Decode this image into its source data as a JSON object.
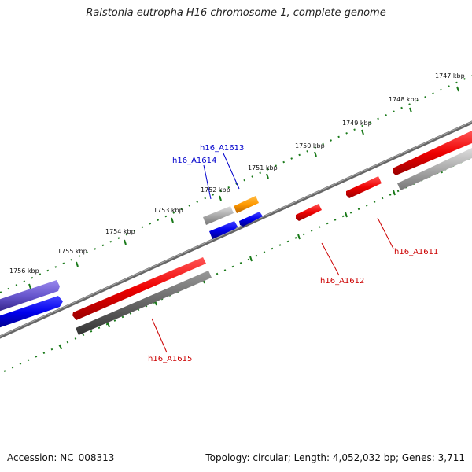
{
  "title": "Ralstonia eutropha H16 chromosome 1, complete genome",
  "footer": {
    "accession": "Accession: NC_008313",
    "summary": "Topology: circular; Length: 4,052,032 bp; Genes: 3,711"
  },
  "ticks": [
    "1747 kbp",
    "1748 kbp",
    "1749 kbp",
    "1750 kbp",
    "1751 kbp",
    "1752 kbp",
    "1753 kbp",
    "1754 kbp",
    "1755 kbp",
    "1756 kbp"
  ],
  "genes": [
    {
      "name": "h16_A1613",
      "color": "#0000cc"
    },
    {
      "name": "h16_A1614",
      "color": "#0000cc"
    },
    {
      "name": "h16_A1611",
      "color": "#cc0000"
    },
    {
      "name": "h16_A1612",
      "color": "#cc0000"
    },
    {
      "name": "h16_A1615",
      "color": "#cc0000"
    }
  ],
  "colors": {
    "backbone": "#777777",
    "tick": "#1a7a1a",
    "red_feature": "#ee0000",
    "blue_feature": "#0000ee",
    "gray_feature": "#aaaaaa",
    "orange_feature": "#ff9900",
    "purple_feature": "#6655cc"
  }
}
